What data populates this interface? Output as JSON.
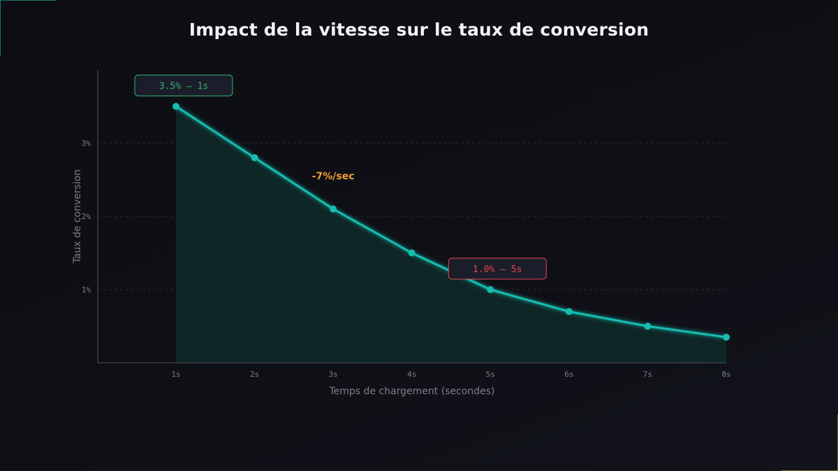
{
  "title": "Impact de la vitesse sur le taux de conversion",
  "colors": {
    "line": "#17bdb0",
    "area": "#0f2a2a",
    "grid": "#2a2b35",
    "axis": "#3a3b47",
    "callout_good": "#2fb56a",
    "callout_bad": "#e0474f",
    "slope": "#f0a030"
  },
  "chart_data": {
    "type": "line",
    "x": [
      "1s",
      "2s",
      "3s",
      "4s",
      "5s",
      "6s",
      "7s",
      "8s"
    ],
    "values": [
      3.5,
      2.8,
      2.1,
      1.5,
      1.0,
      0.7,
      0.5,
      0.35
    ],
    "xlabel": "Temps de chargement (secondes)",
    "ylabel": "Taux de conversion",
    "ylim": [
      0,
      4
    ],
    "yticks": [
      {
        "value": 1,
        "label": "1%"
      },
      {
        "value": 2,
        "label": "2%"
      },
      {
        "value": 3,
        "label": "3%"
      }
    ],
    "grid": true,
    "area_fill": true,
    "annotations": [
      {
        "kind": "callout",
        "text": "3.5% — 1s",
        "x_index": 0,
        "value": 3.5,
        "style": "good"
      },
      {
        "kind": "callout",
        "text": "1.0% — 5s",
        "x_index": 4,
        "value": 1.0,
        "style": "bad"
      },
      {
        "kind": "text",
        "text": "-7%/sec",
        "x_index": 2,
        "value": 2.5,
        "style": "slope"
      }
    ]
  }
}
